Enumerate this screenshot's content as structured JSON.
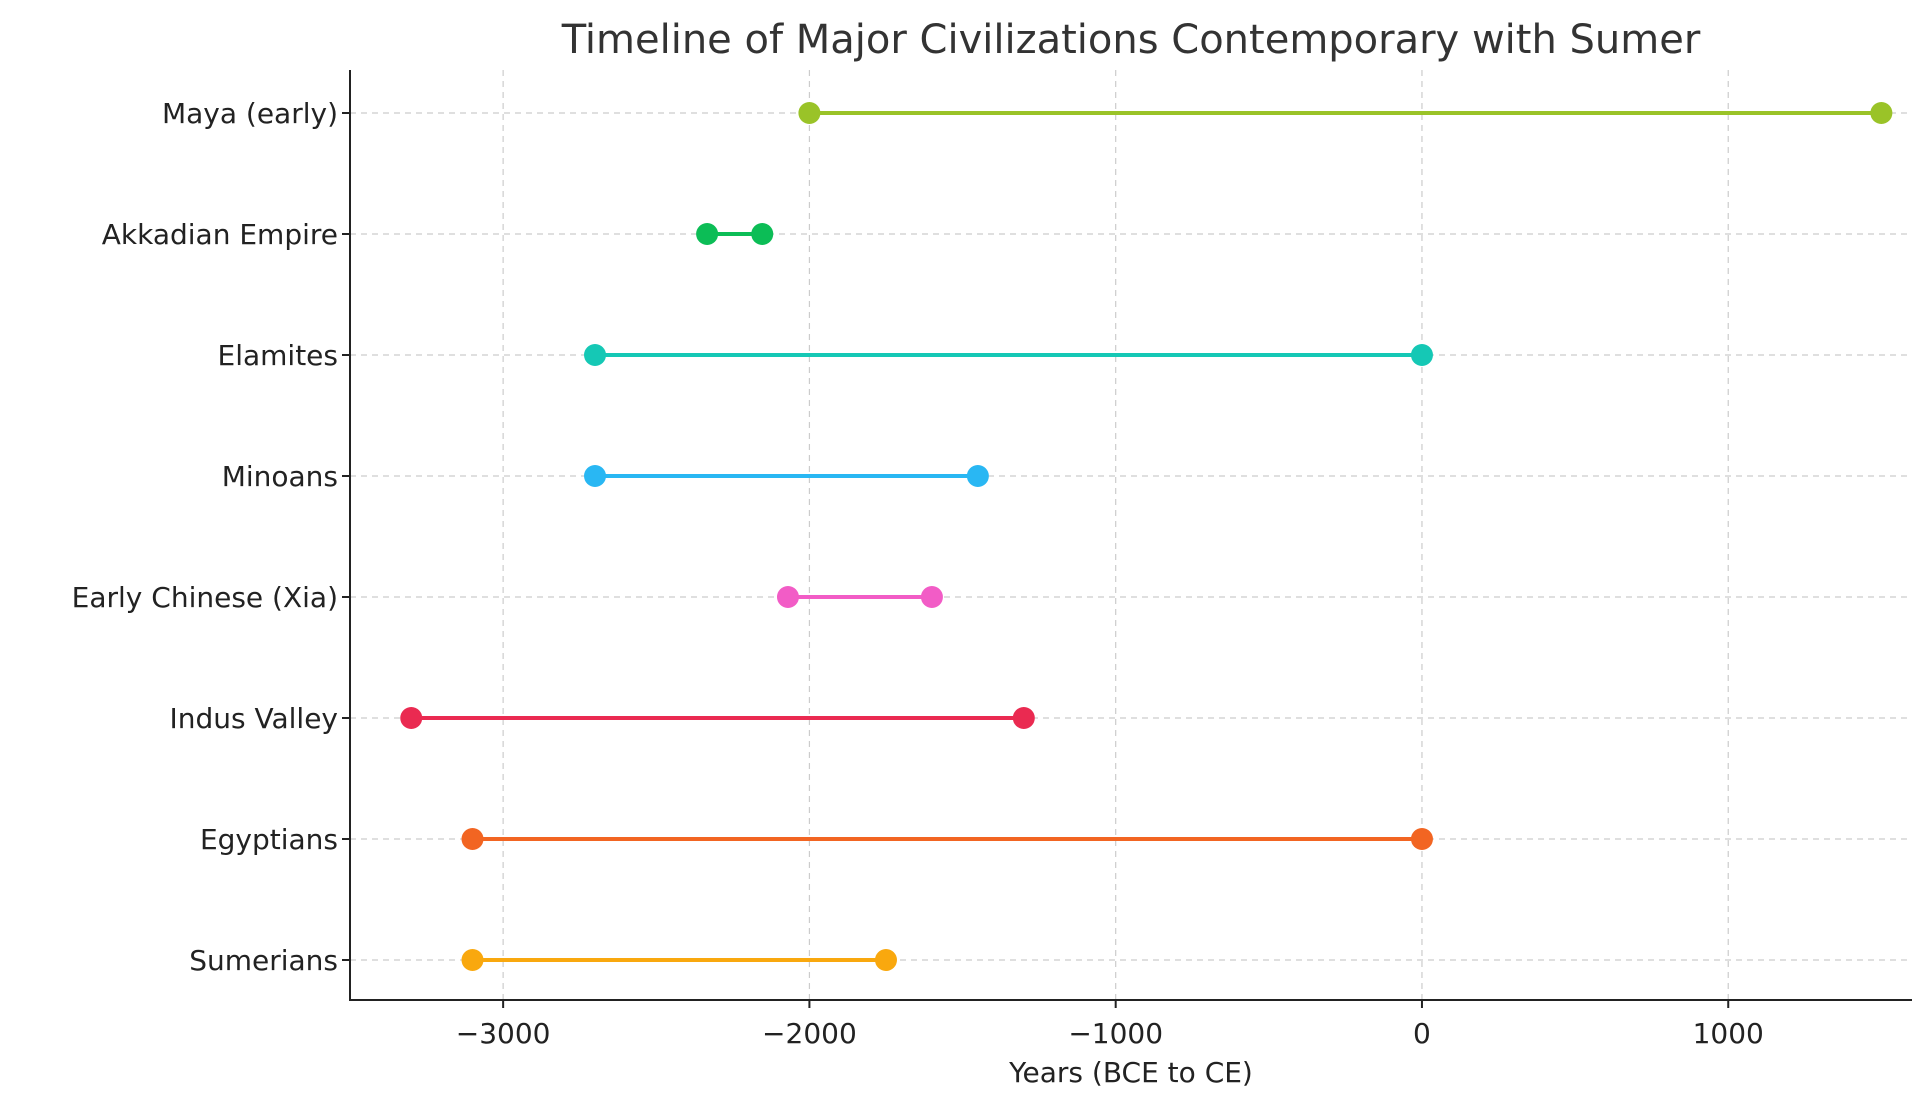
{
  "chart_data": {
    "type": "timeline",
    "title": "Timeline of Major Civilizations Contemporary with Sumer",
    "xlabel": "Years (BCE to CE)",
    "ylabel": "",
    "xlim": [
      -3500,
      1600
    ],
    "xticks": [
      -3000,
      -2000,
      -1000,
      0,
      1000
    ],
    "xtick_labels": [
      "−3000",
      "−2000",
      "−1000",
      "0",
      "1000"
    ],
    "grid": true,
    "series": [
      {
        "name": "Sumerians",
        "start": -3100,
        "end": -1750,
        "color": "#f9a80e"
      },
      {
        "name": "Egyptians",
        "start": -3100,
        "end": 0,
        "color": "#f26522"
      },
      {
        "name": "Indus Valley",
        "start": -3300,
        "end": -1300,
        "color": "#ea2a51"
      },
      {
        "name": "Early Chinese (Xia)",
        "start": -2070,
        "end": -1600,
        "color": "#f25cc6"
      },
      {
        "name": "Minoans",
        "start": -2700,
        "end": -1450,
        "color": "#29b7f3"
      },
      {
        "name": "Elamites",
        "start": -2700,
        "end": 0,
        "color": "#15c8b5"
      },
      {
        "name": "Akkadian Empire",
        "start": -2334,
        "end": -2154,
        "color": "#0cbd56"
      },
      {
        "name": "Maya (early)",
        "start": -2000,
        "end": 1500,
        "color": "#9ac328"
      }
    ]
  }
}
